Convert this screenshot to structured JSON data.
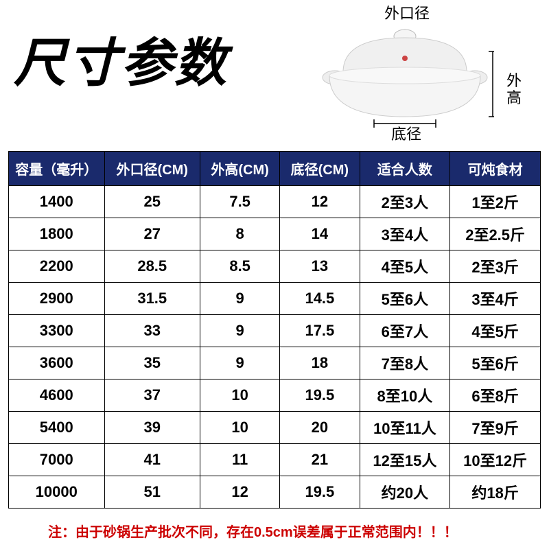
{
  "title": "尺寸参数",
  "diagram": {
    "top_label": "外口径",
    "right_label_1": "外",
    "right_label_2": "高",
    "bottom_label": "底径"
  },
  "table": {
    "header_bg": "#1a2a6c",
    "header_color": "#ffffff",
    "border_color": "#000000",
    "columns": [
      "容量（毫升）",
      "外口径(CM)",
      "外高(CM)",
      "底径(CM)",
      "适合人数",
      "可炖食材"
    ],
    "rows": [
      [
        "1400",
        "25",
        "7.5",
        "12",
        "2至3人",
        "1至2斤"
      ],
      [
        "1800",
        "27",
        "8",
        "14",
        "3至4人",
        "2至2.5斤"
      ],
      [
        "2200",
        "28.5",
        "8.5",
        "13",
        "4至5人",
        "2至3斤"
      ],
      [
        "2900",
        "31.5",
        "9",
        "14.5",
        "5至6人",
        "3至4斤"
      ],
      [
        "3300",
        "33",
        "9",
        "17.5",
        "6至7人",
        "4至5斤"
      ],
      [
        "3600",
        "35",
        "9",
        "18",
        "7至8人",
        "5至6斤"
      ],
      [
        "4600",
        "37",
        "10",
        "19.5",
        "8至10人",
        "6至8斤"
      ],
      [
        "5400",
        "39",
        "10",
        "20",
        "10至11人",
        "7至9斤"
      ],
      [
        "7000",
        "41",
        "11",
        "21",
        "12至15人",
        "10至12斤"
      ],
      [
        "10000",
        "51",
        "12",
        "19.5",
        "约20人",
        "约18斤"
      ]
    ]
  },
  "footnote": "注：由于砂锅生产批次不同，存在0.5cm误差属于正常范围内！！！"
}
